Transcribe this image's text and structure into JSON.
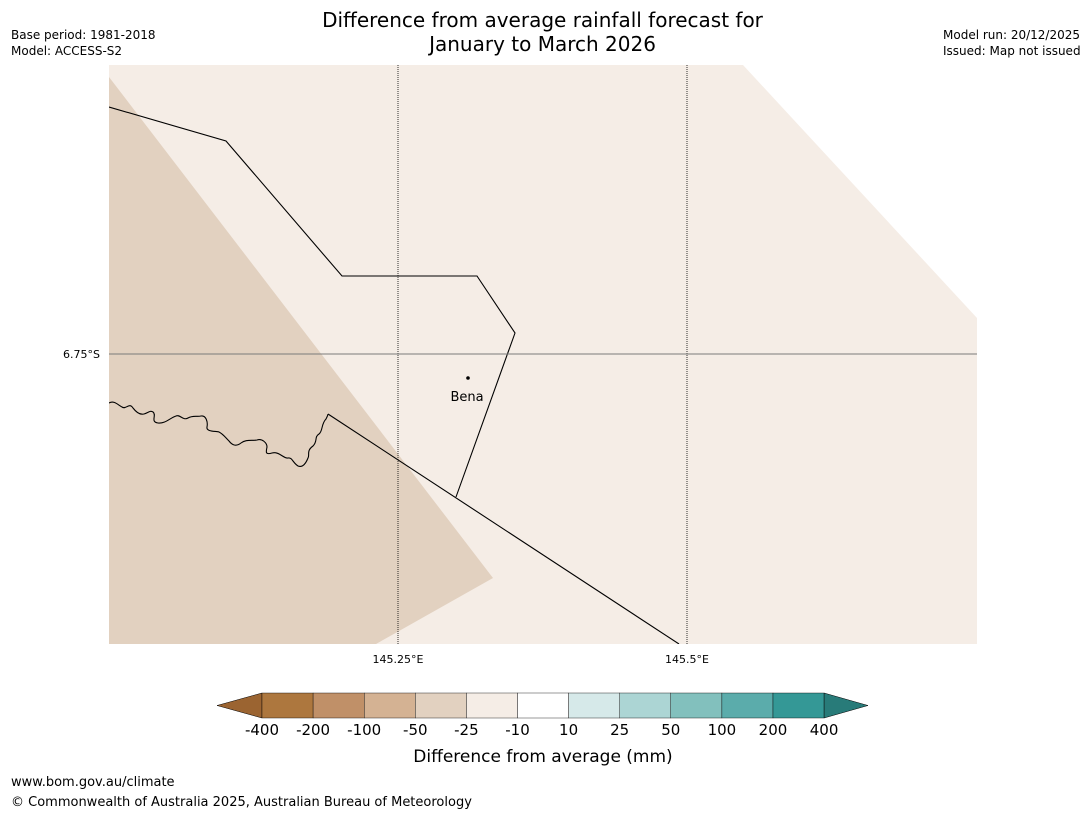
{
  "title": {
    "line1": "Difference from average rainfall forecast for",
    "line2": "January to March 2026"
  },
  "meta_left": {
    "base_period": "Base period: 1981-2018",
    "model": "Model: ACCESS-S2"
  },
  "meta_right": {
    "model_run": "Model run: 20/12/2025",
    "issued": "Issued: Map not issued"
  },
  "map": {
    "latitude_label": "6.75°S",
    "longitude_labels": [
      "145.25°E",
      "145.5°E"
    ],
    "place": {
      "name": "Bena"
    },
    "colors": {
      "band_neg_10_to_neg_25": "#f5ede6",
      "band_neg_25_to_neg_50": "#e2d1c0"
    }
  },
  "colorbar": {
    "ticks": [
      "-400",
      "-200",
      "-100",
      "-50",
      "-25",
      "-10",
      "10",
      "25",
      "50",
      "100",
      "200",
      "400"
    ],
    "colors": [
      "#9b6431",
      "#ad773e",
      "#c09068",
      "#d4b293",
      "#e2d1c0",
      "#f5ede6",
      "#ffffff",
      "#d6e9e9",
      "#acd5d4",
      "#82c0bd",
      "#5bacab",
      "#349896",
      "#287b79"
    ],
    "label": "Difference from average (mm)"
  },
  "footer": {
    "url": "www.bom.gov.au/climate",
    "copyright": "© Commonwealth of Australia 2025, Australian Bureau of Meteorology"
  }
}
